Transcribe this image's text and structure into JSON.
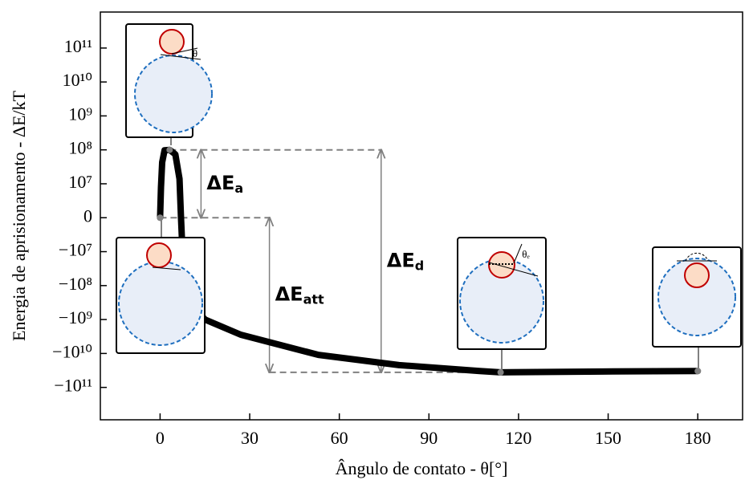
{
  "chart_data": {
    "type": "line",
    "x_label": "Ângulo de contato - θ[°]",
    "y_label": "Energia de aprisionamento - ΔE/kT",
    "yscale": "symlog",
    "linthresh": 10000000,
    "xlim": [
      -20,
      195
    ],
    "xticks": [
      0,
      30,
      60,
      90,
      120,
      150,
      180
    ],
    "ylim": [
      -900000000000,
      1150000000000
    ],
    "yticks": [
      {
        "value": 100000000000,
        "label": "10¹¹"
      },
      {
        "value": 10000000000,
        "label": "10¹⁰"
      },
      {
        "value": 1000000000,
        "label": "10⁹"
      },
      {
        "value": 100000000,
        "label": "10⁸"
      },
      {
        "value": 10000000,
        "label": "10⁷"
      },
      0,
      {
        "value": -10000000,
        "label": "−10⁷"
      },
      {
        "value": -100000000,
        "label": "−10⁸"
      },
      {
        "value": -1000000000,
        "label": "−10⁹"
      },
      {
        "value": -10000000000,
        "label": "−10¹⁰"
      },
      {
        "value": -100000000000,
        "label": "−10¹¹"
      }
    ],
    "color": "#000000",
    "x": [
      0,
      0.3,
      0.7,
      1.5,
      3.2,
      5.1,
      6.5,
      7,
      7.3,
      8,
      10,
      15,
      27,
      53,
      80,
      107,
      114,
      148,
      180
    ],
    "values": [
      0,
      9000000,
      43000000,
      97000000,
      100000000,
      74000000,
      14000000,
      0,
      -6000000,
      -50000000,
      -300000000,
      -1000000000,
      -2800000000,
      -11000000000,
      -22000000000,
      -33000000000,
      -36000000000,
      -34000000000,
      -33000000000
    ],
    "points": {
      "color": "#808080",
      "x": [
        0,
        3.2,
        114,
        180
      ],
      "values": [
        0,
        100000000,
        -36000000000,
        -33000000000
      ]
    },
    "dashed": [
      {
        "y": 100000000,
        "x": [
          3.2,
          74
        ]
      },
      {
        "y": 0,
        "x": [
          0,
          36.6
        ]
      },
      {
        "y": -36000000000,
        "x": [
          36.6,
          114
        ]
      }
    ],
    "annotations": [
      {
        "label": "ΔE",
        "sub": "a",
        "x": 13.7,
        "from": 100000000,
        "to": 0
      },
      {
        "label": "ΔE",
        "sub": "att",
        "x": 36.6,
        "from": 0,
        "to": -36000000000
      },
      {
        "label": "ΔE",
        "sub": "d",
        "x": 74,
        "from": 100000000,
        "to": -36000000000
      }
    ],
    "inset_labels": [
      "θ",
      "θₑ"
    ]
  }
}
